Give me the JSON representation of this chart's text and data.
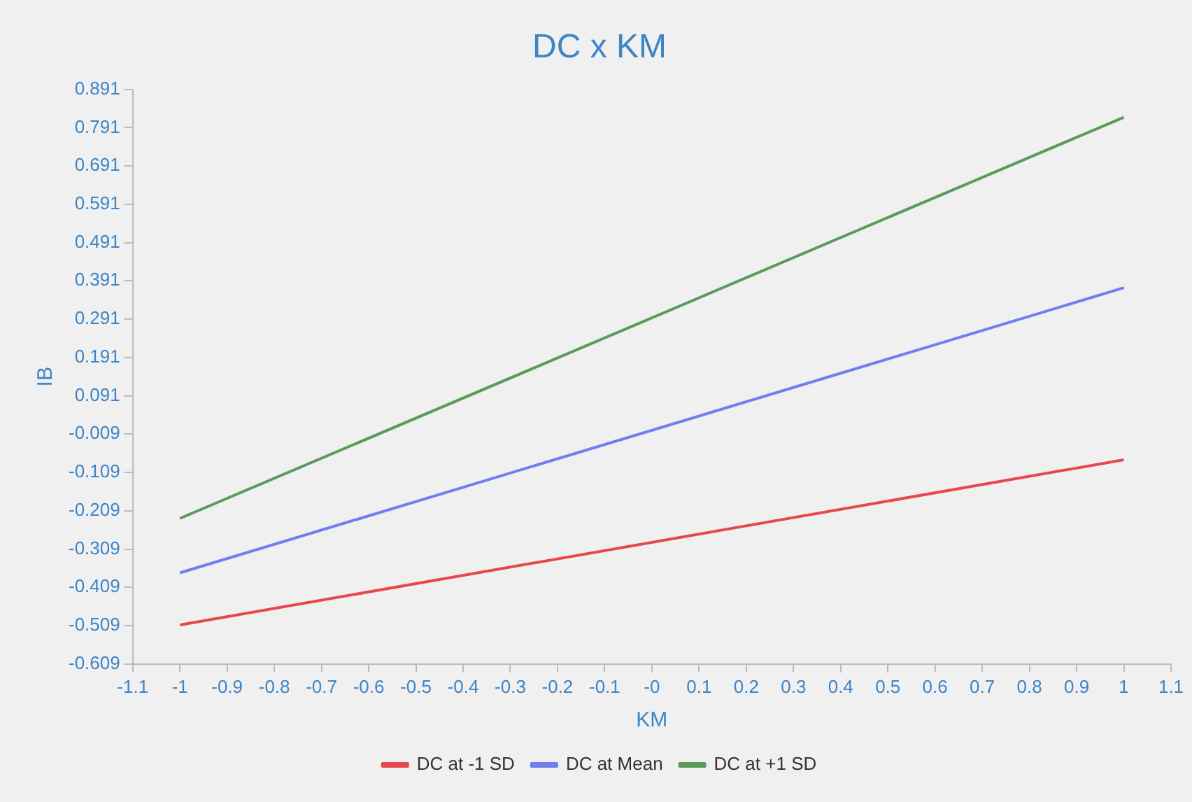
{
  "chart_data": {
    "type": "line",
    "title": "DC x KM",
    "xlabel": "KM",
    "ylabel": "IB",
    "x": [
      -1,
      1
    ],
    "series": [
      {
        "name": "DC at -1 SD",
        "color": "#e8474b",
        "values": [
          -0.507,
          -0.076
        ]
      },
      {
        "name": "DC at Mean",
        "color": "#6f7ff0",
        "values": [
          -0.371,
          0.373
        ]
      },
      {
        "name": "DC at +1 SD",
        "color": "#5a9a5a",
        "values": [
          -0.229,
          0.818
        ]
      }
    ],
    "xlim": [
      -1.1,
      1.1
    ],
    "xticks": [
      -1.1,
      -1,
      -0.9,
      -0.8,
      -0.7,
      -0.6,
      -0.5,
      -0.4,
      -0.3,
      -0.2,
      -0.1,
      {
        "value": 0,
        "label": "-0"
      },
      0.1,
      0.2,
      0.3,
      0.4,
      0.5,
      0.6,
      0.7,
      0.8,
      0.9,
      1,
      1.1
    ],
    "ylim": [
      -0.609,
      0.891
    ],
    "yticks": [
      -0.609,
      -0.509,
      -0.409,
      -0.309,
      -0.209,
      -0.109,
      -0.009,
      0.091,
      0.191,
      0.291,
      0.391,
      0.491,
      0.591,
      0.691,
      0.791,
      0.891
    ],
    "grid": false,
    "legend": "bottom",
    "marker": "none",
    "line_style": "solid"
  }
}
